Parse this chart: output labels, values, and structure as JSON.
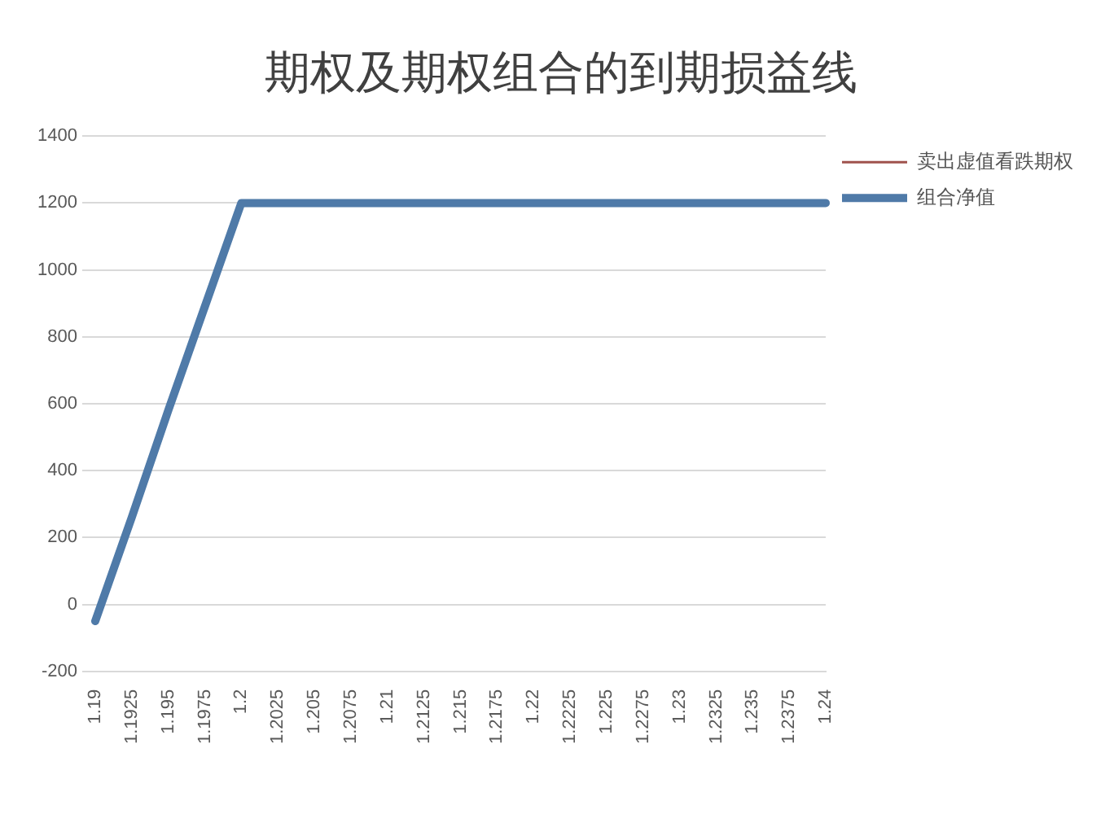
{
  "chart_data": {
    "type": "line",
    "title": "期权及期权组合的到期损益线",
    "categories": [
      "1.19",
      "1.1925",
      "1.195",
      "1.1975",
      "1.2",
      "1.2025",
      "1.205",
      "1.2075",
      "1.21",
      "1.2125",
      "1.215",
      "1.2175",
      "1.22",
      "1.2225",
      "1.225",
      "1.2275",
      "1.23",
      "1.2325",
      "1.235",
      "1.2375",
      "1.24"
    ],
    "series": [
      {
        "name": "卖出虚值看跌期权",
        "color": "#a0524d",
        "values": [
          null,
          null,
          null,
          null,
          null,
          null,
          null,
          null,
          null,
          null,
          null,
          null,
          null,
          null,
          null,
          null,
          null,
          null,
          null,
          null,
          null
        ]
      },
      {
        "name": "组合净值",
        "color": "#4f7aa8",
        "values": [
          -50,
          260,
          580,
          890,
          1200,
          1200,
          1200,
          1200,
          1200,
          1200,
          1200,
          1200,
          1200,
          1200,
          1200,
          1200,
          1200,
          1200,
          1200,
          1200,
          1200
        ]
      }
    ],
    "ylim": [
      -200,
      1400
    ],
    "yticks": [
      -200,
      0,
      200,
      400,
      600,
      800,
      1000,
      1200,
      1400
    ],
    "grid": "y",
    "legend": "right",
    "marker": "none",
    "line_style": "solid"
  }
}
